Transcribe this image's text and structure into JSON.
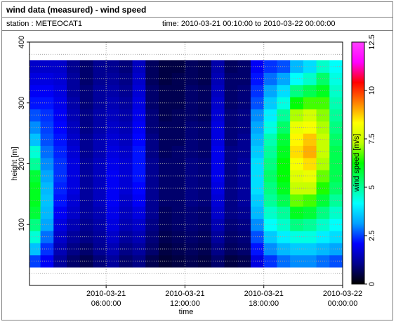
{
  "title": "wind data (measured) - wind speed",
  "station_text": "station : METEOCAT1",
  "time_text": "time: 2010-03-21 00:10:00 to 2010-03-22 00:00:00",
  "chart_data": {
    "type": "heatmap",
    "xlabel": "time",
    "ylabel": "height [m]",
    "colorbar_label": "wind speed [m/s]",
    "x_range": [
      "2010-03-21 00:10:00",
      "2010-03-22 00:00:00"
    ],
    "ylim": [
      0,
      400
    ],
    "colorbar_range": [
      0,
      12.5
    ],
    "x_ticks": [
      {
        "hours": 6,
        "line1": "2010-03-21",
        "line2": "06:00:00"
      },
      {
        "hours": 12,
        "line1": "2010-03-21",
        "line2": "12:00:00"
      },
      {
        "hours": 18,
        "line1": "2010-03-21",
        "line2": "18:00:00"
      },
      {
        "hours": 24,
        "line1": "2010-03-22",
        "line2": "00:00:00"
      }
    ],
    "y_ticks": [
      100,
      200,
      300,
      400
    ],
    "colorbar_ticks": [
      "0",
      "2.5",
      "5",
      "7.5",
      "10",
      "12.5"
    ],
    "colormap": [
      "#000000",
      "#00008c",
      "#0000ff",
      "#00a0ff",
      "#00ffff",
      "#00ff80",
      "#00ff00",
      "#c0ff00",
      "#ffff00",
      "#ff8000",
      "#ff0000",
      "#ff00ff",
      "#ff40ff"
    ],
    "grid": true,
    "heights_m": [
      40,
      60,
      80,
      100,
      120,
      140,
      160,
      180,
      200,
      220,
      240,
      260,
      280,
      300,
      320,
      340,
      360
    ],
    "time_hours": [
      0.17,
      1,
      2,
      3,
      4,
      5,
      6,
      7,
      8,
      9,
      10,
      11,
      12,
      13,
      14,
      15,
      16,
      17,
      18,
      19,
      20,
      21,
      22,
      23
    ],
    "wind_speed_ms": [
      [
        2.5,
        3.5,
        4.5,
        5.2,
        5.8,
        6.0,
        6.0,
        5.8,
        5.0,
        4.5,
        3.5,
        3.0,
        2.6,
        2.2,
        2.0,
        1.8,
        1.6
      ],
      [
        2.0,
        2.4,
        2.8,
        3.2,
        3.4,
        3.5,
        3.4,
        3.2,
        3.0,
        2.8,
        2.6,
        2.5,
        2.4,
        2.2,
        2.0,
        1.8,
        1.6
      ],
      [
        1.2,
        1.4,
        1.6,
        1.8,
        2.0,
        2.2,
        2.3,
        2.4,
        2.4,
        2.3,
        2.2,
        2.1,
        2.0,
        1.9,
        1.8,
        1.7,
        1.6
      ],
      [
        0.8,
        1.0,
        1.2,
        1.4,
        1.6,
        1.7,
        1.8,
        1.8,
        1.8,
        1.7,
        1.6,
        1.5,
        1.4,
        1.3,
        1.2,
        1.2,
        1.1
      ],
      [
        0.6,
        0.8,
        1.0,
        1.1,
        1.2,
        1.2,
        1.2,
        1.2,
        1.2,
        1.1,
        1.1,
        1.0,
        1.0,
        0.9,
        0.9,
        0.8,
        0.8
      ],
      [
        0.9,
        1.1,
        1.2,
        1.3,
        1.4,
        1.5,
        1.5,
        1.5,
        1.5,
        1.4,
        1.4,
        1.3,
        1.3,
        1.2,
        1.2,
        1.1,
        1.1
      ],
      [
        1.2,
        1.4,
        1.6,
        1.8,
        1.9,
        2.0,
        2.0,
        2.0,
        1.9,
        1.8,
        1.7,
        1.6,
        1.5,
        1.4,
        1.3,
        1.2,
        1.1
      ],
      [
        0.8,
        1.0,
        1.2,
        1.4,
        1.5,
        1.6,
        1.7,
        1.7,
        1.7,
        1.6,
        1.5,
        1.4,
        1.3,
        1.2,
        1.1,
        1.0,
        0.9
      ],
      [
        1.0,
        1.2,
        1.4,
        1.6,
        1.8,
        2.0,
        2.1,
        2.2,
        2.2,
        2.2,
        2.1,
        2.0,
        1.9,
        1.8,
        1.7,
        1.6,
        1.5
      ],
      [
        0.6,
        0.8,
        0.9,
        1.0,
        1.1,
        1.1,
        1.1,
        1.1,
        1.1,
        1.0,
        1.0,
        0.9,
        0.9,
        0.8,
        0.8,
        0.7,
        0.7
      ],
      [
        0.4,
        0.5,
        0.6,
        0.7,
        0.7,
        0.8,
        0.8,
        0.8,
        0.8,
        0.7,
        0.7,
        0.7,
        0.6,
        0.6,
        0.6,
        0.5,
        0.5
      ],
      [
        0.5,
        0.6,
        0.7,
        0.8,
        0.8,
        0.8,
        0.8,
        0.8,
        0.8,
        0.8,
        0.7,
        0.7,
        0.7,
        0.6,
        0.6,
        0.6,
        0.5
      ],
      [
        0.6,
        0.7,
        0.8,
        0.9,
        0.9,
        1.0,
        1.0,
        1.0,
        1.0,
        0.9,
        0.9,
        0.9,
        0.8,
        0.8,
        0.8,
        0.7,
        0.7
      ],
      [
        0.5,
        0.6,
        0.7,
        0.8,
        0.8,
        0.9,
        0.9,
        0.9,
        0.9,
        0.8,
        0.8,
        0.8,
        0.7,
        0.7,
        0.7,
        0.6,
        0.6
      ],
      [
        0.8,
        1.0,
        1.2,
        1.4,
        1.6,
        1.7,
        1.8,
        1.9,
        1.9,
        1.9,
        1.8,
        1.8,
        1.7,
        1.6,
        1.5,
        1.4,
        1.3
      ],
      [
        0.5,
        0.7,
        0.8,
        0.9,
        1.0,
        1.0,
        1.0,
        1.0,
        1.0,
        1.0,
        0.9,
        0.9,
        0.9,
        0.8,
        0.8,
        0.8,
        0.7
      ],
      [
        0.6,
        0.8,
        0.9,
        1.0,
        1.1,
        1.2,
        1.2,
        1.2,
        1.2,
        1.1,
        1.1,
        1.0,
        1.0,
        0.9,
        0.9,
        0.8,
        0.8
      ],
      [
        1.8,
        2.2,
        2.6,
        3.0,
        3.4,
        3.6,
        3.8,
        3.8,
        3.8,
        3.6,
        3.4,
        3.2,
        3.0,
        2.6,
        2.4,
        2.2,
        2.0
      ],
      [
        2.4,
        3.0,
        3.6,
        4.2,
        4.6,
        5.0,
        5.2,
        5.4,
        5.2,
        5.0,
        4.8,
        4.4,
        4.0,
        3.6,
        3.2,
        2.8,
        2.4
      ],
      [
        2.8,
        3.4,
        4.0,
        4.6,
        5.0,
        5.6,
        6.0,
        6.2,
        6.2,
        6.0,
        5.8,
        5.4,
        5.0,
        4.4,
        3.8,
        3.2,
        2.6
      ],
      [
        3.0,
        3.6,
        4.4,
        5.2,
        6.0,
        6.8,
        7.4,
        7.8,
        8.2,
        8.6,
        8.4,
        8.0,
        7.2,
        6.2,
        5.2,
        4.2,
        3.4
      ],
      [
        3.0,
        3.6,
        4.4,
        5.0,
        5.8,
        6.6,
        7.4,
        8.0,
        8.6,
        9.0,
        8.8,
        8.2,
        7.6,
        6.6,
        5.6,
        4.6,
        3.8
      ],
      [
        2.8,
        3.4,
        4.0,
        4.6,
        5.2,
        5.8,
        6.4,
        6.8,
        7.2,
        7.4,
        7.4,
        7.2,
        7.0,
        6.6,
        6.0,
        5.4,
        4.6
      ],
      [
        2.6,
        3.2,
        3.8,
        4.2,
        4.6,
        5.0,
        5.4,
        5.6,
        5.6,
        5.6,
        5.4,
        5.2,
        5.0,
        4.8,
        4.6,
        4.4,
        4.2
      ]
    ]
  }
}
